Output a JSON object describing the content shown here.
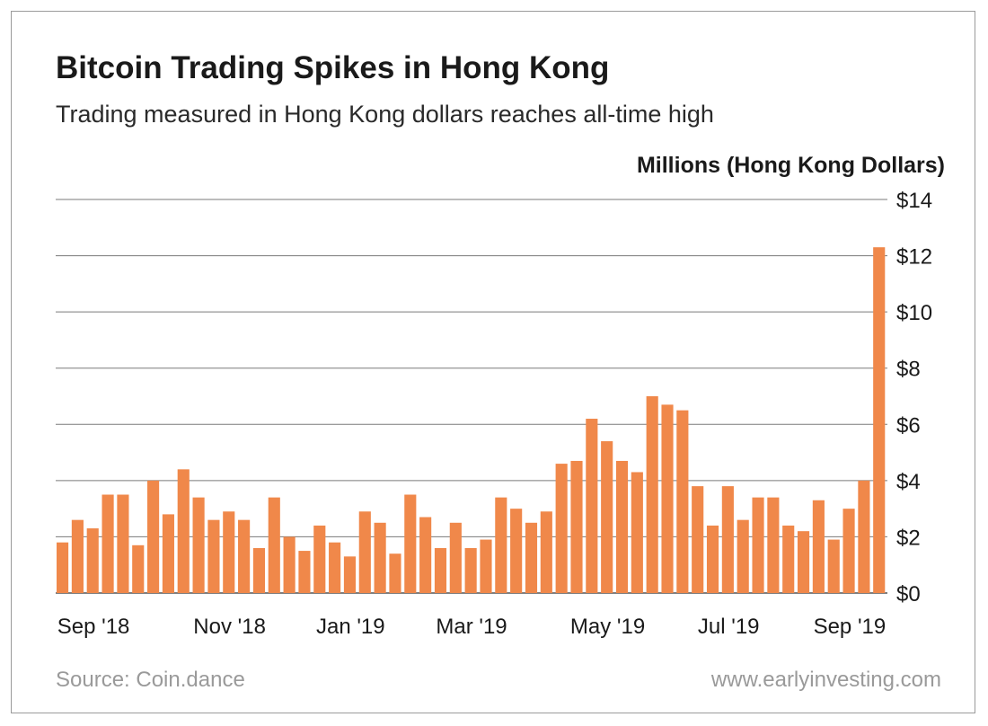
{
  "source": "Source: Coin.dance",
  "website": "www.earlyinvesting.com",
  "chart_data": {
    "type": "bar",
    "title": "Bitcoin Trading Spikes in Hong Kong",
    "subtitle": "Trading measured in Hong Kong dollars reaches all-time high",
    "ylabel": "Millions (Hong Kong Dollars)",
    "ylim": [
      0,
      14
    ],
    "yticks": [
      0,
      2,
      4,
      6,
      8,
      10,
      12,
      14
    ],
    "ytick_labels": [
      "$0",
      "$2",
      "$4",
      "$6",
      "$8",
      "$10",
      "$12",
      "$14"
    ],
    "y_axis_position": "right",
    "grid": true,
    "legend": "none",
    "x_tick_labels": [
      {
        "label": "Sep '18",
        "bar_index": 2
      },
      {
        "label": "Nov '18",
        "bar_index": 11
      },
      {
        "label": "Jan '19",
        "bar_index": 19
      },
      {
        "label": "Mar '19",
        "bar_index": 27
      },
      {
        "label": "May '19",
        "bar_index": 36
      },
      {
        "label": "Jul '19",
        "bar_index": 44
      },
      {
        "label": "Sep '19",
        "bar_index": 52
      }
    ],
    "bar_color": "#f0884a",
    "values": [
      1.8,
      2.6,
      2.3,
      3.5,
      3.5,
      1.7,
      4.0,
      2.8,
      4.4,
      3.4,
      2.6,
      2.9,
      2.6,
      1.6,
      3.4,
      2.0,
      1.5,
      2.4,
      1.8,
      1.3,
      2.9,
      2.5,
      1.4,
      3.5,
      2.7,
      1.6,
      2.5,
      1.6,
      1.9,
      3.4,
      3.0,
      2.5,
      2.9,
      4.6,
      4.7,
      6.2,
      5.4,
      4.7,
      4.3,
      7.0,
      6.7,
      6.5,
      3.8,
      2.4,
      3.8,
      2.6,
      3.4,
      3.4,
      2.4,
      2.2,
      3.3,
      1.9,
      3.0,
      4.0,
      12.3
    ]
  }
}
